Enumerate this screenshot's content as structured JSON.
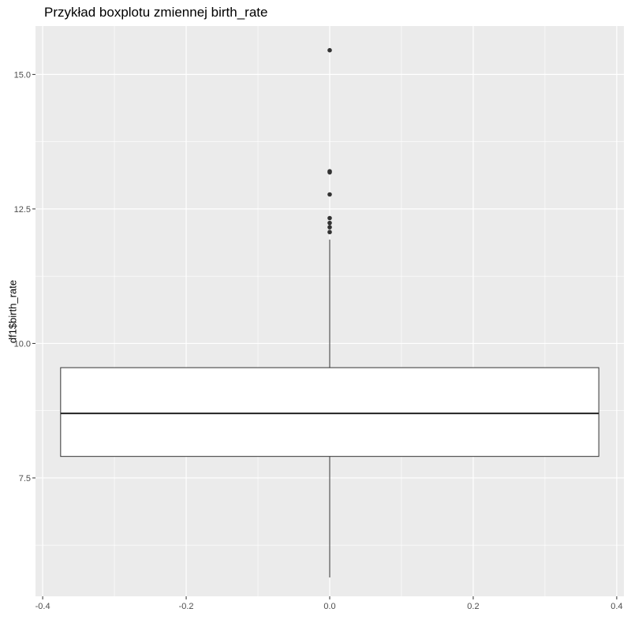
{
  "chart_data": {
    "type": "boxplot",
    "title": "Przykład boxplotu zmiennej birth_rate",
    "xlabel": "",
    "ylabel": "df1$birth_rate",
    "xlim": [
      -0.41,
      0.41
    ],
    "ylim": [
      5.3,
      15.9
    ],
    "x_ticks": [
      -0.4,
      -0.2,
      0.0,
      0.2,
      0.4
    ],
    "x_tick_labels": [
      "-0.4",
      "-0.2",
      "0.0",
      "0.2",
      "0.4"
    ],
    "y_ticks": [
      7.5,
      10.0,
      12.5,
      15.0
    ],
    "y_tick_labels": [
      "7.5",
      "10.0",
      "12.5",
      "15.0"
    ],
    "grid": true,
    "box": {
      "x_center": 0.0,
      "half_width": 0.375,
      "whisker_low": 5.65,
      "q1": 7.9,
      "median": 8.7,
      "q3": 9.55,
      "whisker_high": 11.93
    },
    "outliers": [
      15.45,
      13.2,
      13.18,
      12.77,
      12.33,
      12.24,
      12.16,
      12.07
    ],
    "colors": {
      "panel": "#ebebeb",
      "grid": "#ffffff",
      "box_fill": "#ffffff",
      "box_line": "#333333",
      "outlier": "#333333"
    }
  }
}
